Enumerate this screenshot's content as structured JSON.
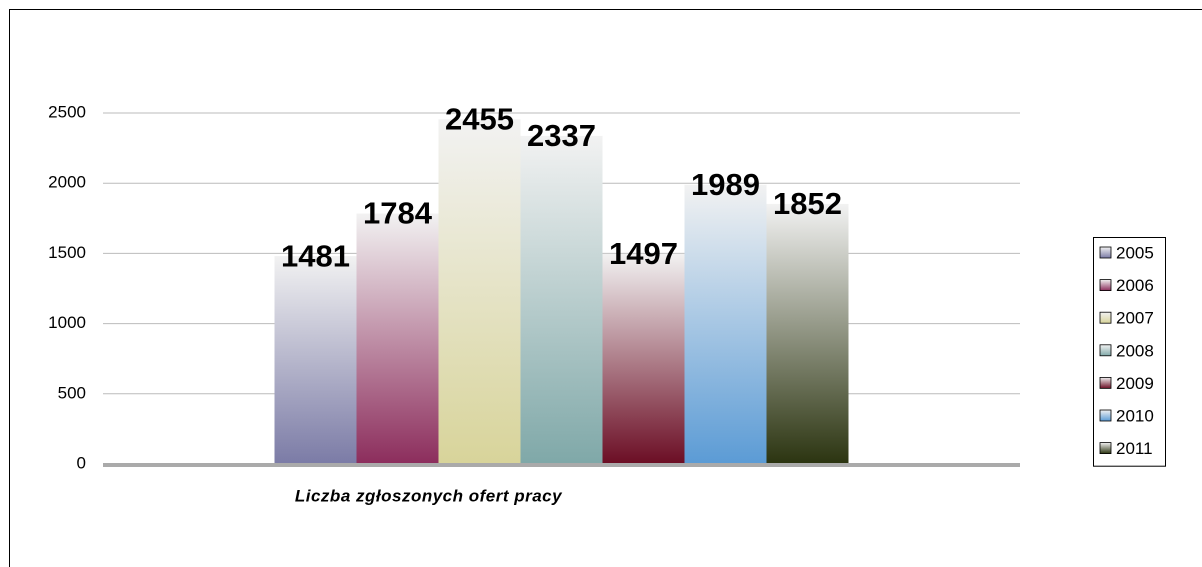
{
  "chart_data": {
    "type": "bar",
    "categories": [
      "Liczba zgłoszonych ofert pracy"
    ],
    "series": [
      {
        "name": "2005",
        "color": "#7b7ba6",
        "values": [
          1481
        ]
      },
      {
        "name": "2006",
        "color": "#8c2d5c",
        "values": [
          1784
        ]
      },
      {
        "name": "2007",
        "color": "#d8d49a",
        "values": [
          2455
        ]
      },
      {
        "name": "2008",
        "color": "#7fa8a8",
        "values": [
          2337
        ]
      },
      {
        "name": "2009",
        "color": "#6b0d24",
        "values": [
          1497
        ]
      },
      {
        "name": "2010",
        "color": "#5b9bd5",
        "values": [
          1989
        ]
      },
      {
        "name": "2011",
        "color": "#2b3410",
        "values": [
          1852
        ]
      }
    ],
    "ylim": [
      0,
      2500
    ],
    "yticks": [
      0,
      500,
      1000,
      1500,
      2000,
      2500
    ],
    "grid": true,
    "legend": "right"
  }
}
